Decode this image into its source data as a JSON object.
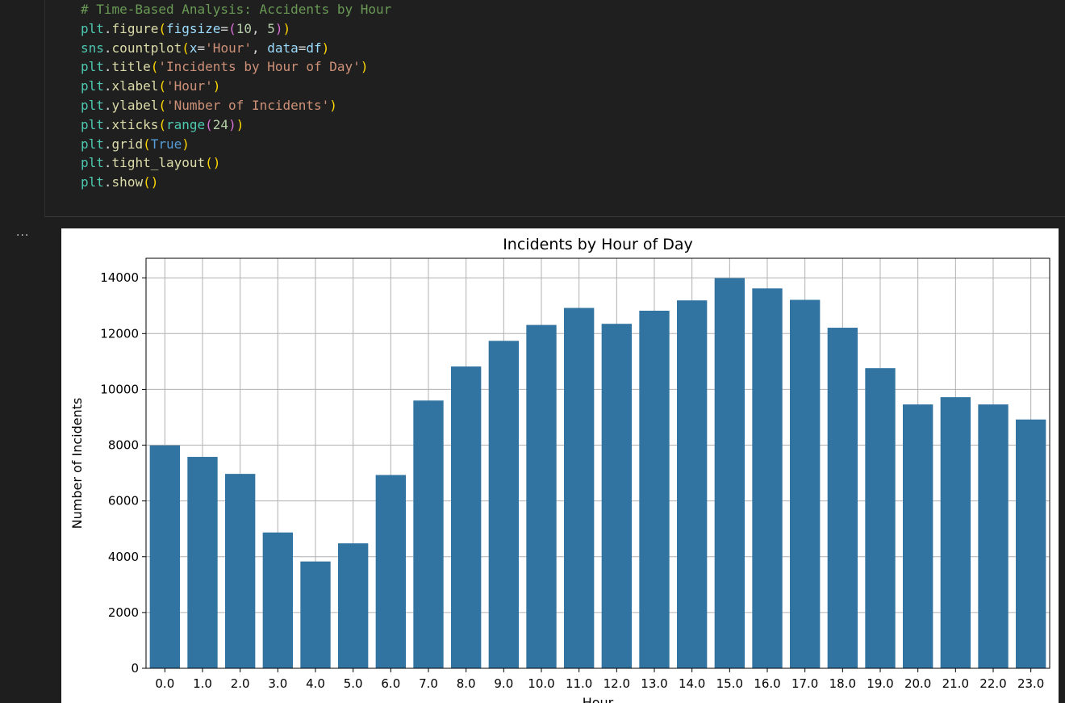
{
  "code_cell": {
    "lines": [
      [
        {
          "t": "# Time-Based Analysis: Accidents by Hour",
          "c": "comment"
        }
      ],
      [
        {
          "t": "plt",
          "c": "var"
        },
        {
          "t": ".",
          "c": "op"
        },
        {
          "t": "figure",
          "c": "func"
        },
        {
          "t": "(",
          "c": "p1"
        },
        {
          "t": "figsize",
          "c": "param"
        },
        {
          "t": "=",
          "c": "op"
        },
        {
          "t": "(",
          "c": "p2"
        },
        {
          "t": "10",
          "c": "num"
        },
        {
          "t": ", ",
          "c": "op"
        },
        {
          "t": "5",
          "c": "num"
        },
        {
          "t": ")",
          "c": "p2"
        },
        {
          "t": ")",
          "c": "p1"
        }
      ],
      [
        {
          "t": "sns",
          "c": "var"
        },
        {
          "t": ".",
          "c": "op"
        },
        {
          "t": "countplot",
          "c": "func"
        },
        {
          "t": "(",
          "c": "p1"
        },
        {
          "t": "x",
          "c": "param"
        },
        {
          "t": "=",
          "c": "op"
        },
        {
          "t": "'Hour'",
          "c": "str"
        },
        {
          "t": ", ",
          "c": "op"
        },
        {
          "t": "data",
          "c": "param"
        },
        {
          "t": "=",
          "c": "op"
        },
        {
          "t": "df",
          "c": "param"
        },
        {
          "t": ")",
          "c": "p1"
        }
      ],
      [
        {
          "t": "plt",
          "c": "var"
        },
        {
          "t": ".",
          "c": "op"
        },
        {
          "t": "title",
          "c": "func"
        },
        {
          "t": "(",
          "c": "p1"
        },
        {
          "t": "'Incidents by Hour of Day'",
          "c": "str"
        },
        {
          "t": ")",
          "c": "p1"
        }
      ],
      [
        {
          "t": "plt",
          "c": "var"
        },
        {
          "t": ".",
          "c": "op"
        },
        {
          "t": "xlabel",
          "c": "func"
        },
        {
          "t": "(",
          "c": "p1"
        },
        {
          "t": "'Hour'",
          "c": "str"
        },
        {
          "t": ")",
          "c": "p1"
        }
      ],
      [
        {
          "t": "plt",
          "c": "var"
        },
        {
          "t": ".",
          "c": "op"
        },
        {
          "t": "ylabel",
          "c": "func"
        },
        {
          "t": "(",
          "c": "p1"
        },
        {
          "t": "'Number of Incidents'",
          "c": "str"
        },
        {
          "t": ")",
          "c": "p1"
        }
      ],
      [
        {
          "t": "plt",
          "c": "var"
        },
        {
          "t": ".",
          "c": "op"
        },
        {
          "t": "xticks",
          "c": "func"
        },
        {
          "t": "(",
          "c": "p1"
        },
        {
          "t": "range",
          "c": "var"
        },
        {
          "t": "(",
          "c": "p2"
        },
        {
          "t": "24",
          "c": "num"
        },
        {
          "t": ")",
          "c": "p2"
        },
        {
          "t": ")",
          "c": "p1"
        }
      ],
      [
        {
          "t": "plt",
          "c": "var"
        },
        {
          "t": ".",
          "c": "op"
        },
        {
          "t": "grid",
          "c": "func"
        },
        {
          "t": "(",
          "c": "p1"
        },
        {
          "t": "True",
          "c": "kw"
        },
        {
          "t": ")",
          "c": "p1"
        }
      ],
      [
        {
          "t": "plt",
          "c": "var"
        },
        {
          "t": ".",
          "c": "op"
        },
        {
          "t": "tight_layout",
          "c": "func"
        },
        {
          "t": "()",
          "c": "p1"
        }
      ],
      [
        {
          "t": "plt",
          "c": "var"
        },
        {
          "t": ".",
          "c": "op"
        },
        {
          "t": "show",
          "c": "func"
        },
        {
          "t": "()",
          "c": "p1"
        }
      ]
    ]
  },
  "output": {
    "indicator": "..."
  },
  "colors": {
    "bar": "#3274a1",
    "grid": "#b0b0b0",
    "background": "#1e1e1e"
  },
  "chart_data": {
    "type": "bar",
    "title": "Incidents by Hour of Day",
    "xlabel": "Hour",
    "ylabel": "Number of Incidents",
    "categories": [
      "0.0",
      "1.0",
      "2.0",
      "3.0",
      "4.0",
      "5.0",
      "6.0",
      "7.0",
      "8.0",
      "9.0",
      "10.0",
      "11.0",
      "12.0",
      "13.0",
      "14.0",
      "15.0",
      "16.0",
      "17.0",
      "18.0",
      "19.0",
      "20.0",
      "21.0",
      "22.0",
      "23.0"
    ],
    "values": [
      7990,
      7580,
      6970,
      4870,
      3830,
      4480,
      6930,
      9600,
      10820,
      11740,
      12310,
      12920,
      12350,
      12820,
      13190,
      13990,
      13620,
      13210,
      12210,
      10760,
      9460,
      9720,
      9460,
      8920
    ],
    "yticks": [
      "0",
      "2000",
      "4000",
      "6000",
      "8000",
      "10000",
      "12000",
      "14000"
    ],
    "ylim": [
      0,
      14700
    ],
    "grid": true
  }
}
